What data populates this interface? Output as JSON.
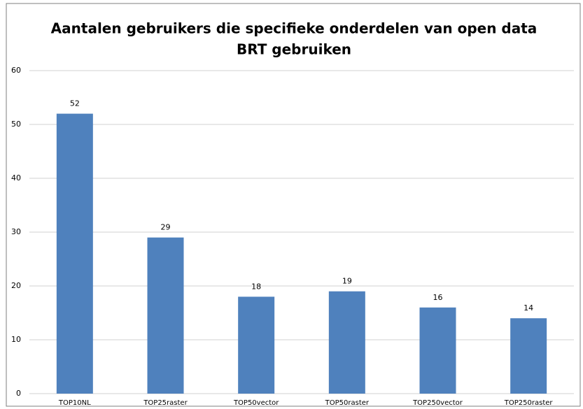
{
  "chart_data": {
    "type": "bar",
    "title": [
      "Aantalen gebruikers die specifieke onderdelen van open data",
      "BRT gebruiken"
    ],
    "categories": [
      "TOP10NL",
      "TOP25raster",
      "TOP50vector",
      "TOP50raster",
      "TOP250vector",
      "TOP250raster"
    ],
    "values": [
      52,
      29,
      18,
      19,
      16,
      14
    ],
    "color": "#4f81bd",
    "ylim": [
      0,
      60
    ],
    "yticks": [
      0,
      10,
      20,
      30,
      40,
      50,
      60
    ],
    "grid": true
  }
}
